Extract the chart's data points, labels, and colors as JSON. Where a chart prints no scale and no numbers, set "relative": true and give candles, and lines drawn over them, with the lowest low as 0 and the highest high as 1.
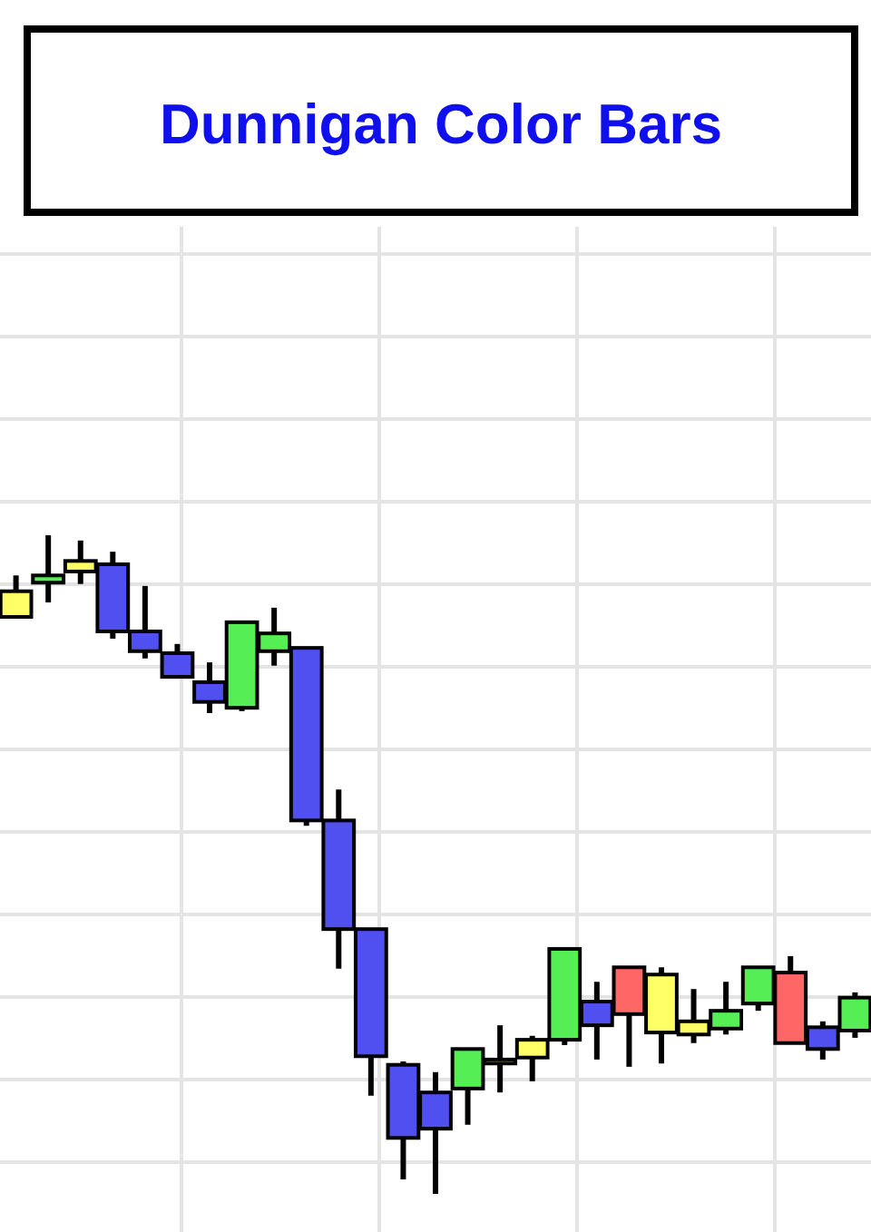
{
  "chart_data": {
    "type": "candlestick",
    "title": "Dunnigan Color Bars",
    "relative": true,
    "grid": true,
    "categories": [
      null,
      null,
      null,
      null,
      null,
      null,
      null,
      null,
      null,
      null,
      null,
      null,
      null,
      null,
      null,
      null,
      null,
      null,
      null,
      null,
      null,
      null,
      null,
      null,
      null,
      null,
      null
    ],
    "ohlc": [
      [
        0.876,
        0.939,
        0.876,
        0.915
      ],
      [
        0.928,
        1,
        0.898,
        0.939
      ],
      [
        0.945,
        0.992,
        0.926,
        0.961
      ],
      [
        0.956,
        0.975,
        0.843,
        0.854
      ],
      [
        0.854,
        0.923,
        0.813,
        0.824
      ],
      [
        0.821,
        0.835,
        0.785,
        0.785
      ],
      [
        0.777,
        0.807,
        0.73,
        0.747
      ],
      [
        0.738,
        0.868,
        0.733,
        0.868
      ],
      [
        0.824,
        0.89,
        0.802,
        0.851
      ],
      [
        0.829,
        0.829,
        0.559,
        0.567
      ],
      [
        0.567,
        0.614,
        0.342,
        0.402
      ],
      [
        0.402,
        0.402,
        0.149,
        0.209
      ],
      [
        0.196,
        0.201,
        0.022,
        0.085
      ],
      [
        0.154,
        0.185,
        0,
        0.099
      ],
      [
        0.16,
        0.22,
        0.105,
        0.22
      ],
      [
        0.198,
        0.256,
        0.154,
        0.204
      ],
      [
        0.207,
        0.24,
        0.171,
        0.234
      ],
      [
        0.234,
        0.372,
        0.226,
        0.372
      ],
      [
        0.292,
        0.322,
        0.204,
        0.256
      ],
      [
        0.344,
        0.344,
        0.193,
        0.273
      ],
      [
        0.333,
        0.344,
        0.198,
        0.245
      ],
      [
        0.262,
        0.311,
        0.229,
        0.242
      ],
      [
        0.251,
        0.322,
        0.242,
        0.278
      ],
      [
        0.289,
        0.344,
        0.278,
        0.344
      ],
      [
        0.336,
        0.361,
        0.229,
        0.229
      ],
      [
        0.253,
        0.262,
        0.204,
        0.22
      ],
      [
        0.248,
        0.306,
        0.237,
        0.298
      ]
    ],
    "colors": [
      "#ffff66",
      "#55ee55",
      "#ffff66",
      "#5050f0",
      "#5050f0",
      "#5050f0",
      "#5050f0",
      "#55ee55",
      "#55ee55",
      "#5050f0",
      "#5050f0",
      "#5050f0",
      "#5050f0",
      "#5050f0",
      "#55ee55",
      "#ffff66",
      "#ffff66",
      "#55ee55",
      "#5050f0",
      "#ff6666",
      "#ffff66",
      "#ffff66",
      "#55ee55",
      "#55ee55",
      "#ff6666",
      "#5050f0",
      "#55ee55"
    ]
  }
}
